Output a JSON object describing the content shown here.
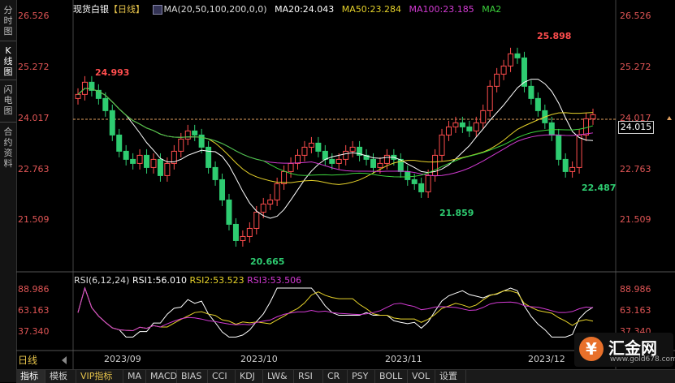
{
  "left_tabs": [
    {
      "label": "分时图",
      "active": false
    },
    {
      "label": "K线图",
      "active": true
    },
    {
      "label": "闪电图",
      "active": false
    },
    {
      "label": "合约资料",
      "active": false
    }
  ],
  "legend": {
    "instrument": "现货白银",
    "period": "【日线】",
    "ma_params": "MA(20,50,100,200,0,0)",
    "ma20": "MA20:24.043",
    "ma50": "MA50:23.284",
    "ma100": "MA100:23.185",
    "ma2": "MA2"
  },
  "price_axis": [
    "26.526",
    "25.272",
    "24.017",
    "22.763",
    "21.509"
  ],
  "current_price": "24.015",
  "rsi_legend": {
    "params": "RSI(6,12,24)",
    "rsi1": "RSI1:56.010",
    "rsi2": "RSI2:53.523",
    "rsi3": "RSI3:53.506"
  },
  "rsi_axis": [
    "88.986",
    "63.163",
    "37.340"
  ],
  "dates": [
    "2023/09",
    "2023/10",
    "2023/11",
    "2023/12"
  ],
  "annotations": {
    "high1": "24.993",
    "high2": "25.898",
    "low1": "20.665",
    "low2": "21.859",
    "low3": "22.487"
  },
  "period_selector": "日线",
  "bottom_tabs": [
    "指标",
    "模板",
    "VIP指标",
    "MA",
    "MACD",
    "BIAS",
    "CCI",
    "KDJ",
    "LW&",
    "RSI",
    "CR",
    "PSY",
    "BOLL",
    "VOL",
    "设置"
  ],
  "logo": {
    "mark": "¥",
    "name": "汇金网",
    "url": "www.gold678.com"
  },
  "colors": {
    "up": "#ff4d4d",
    "down": "#2ecc71",
    "ma20": "#ffffff",
    "ma50": "#e6d22a",
    "ma100": "#d23ad2",
    "ma2": "#3cd23c"
  },
  "chart_data": {
    "type": "candlestick",
    "price_axis_ticks": [
      26.526,
      25.272,
      24.017,
      22.763,
      21.509
    ],
    "rsi_axis_ticks": [
      88.986,
      63.163,
      37.34
    ],
    "annotated_high": [
      24.993,
      25.898
    ],
    "annotated_low": [
      20.665,
      21.859,
      22.487
    ],
    "last_price": 24.015
  }
}
